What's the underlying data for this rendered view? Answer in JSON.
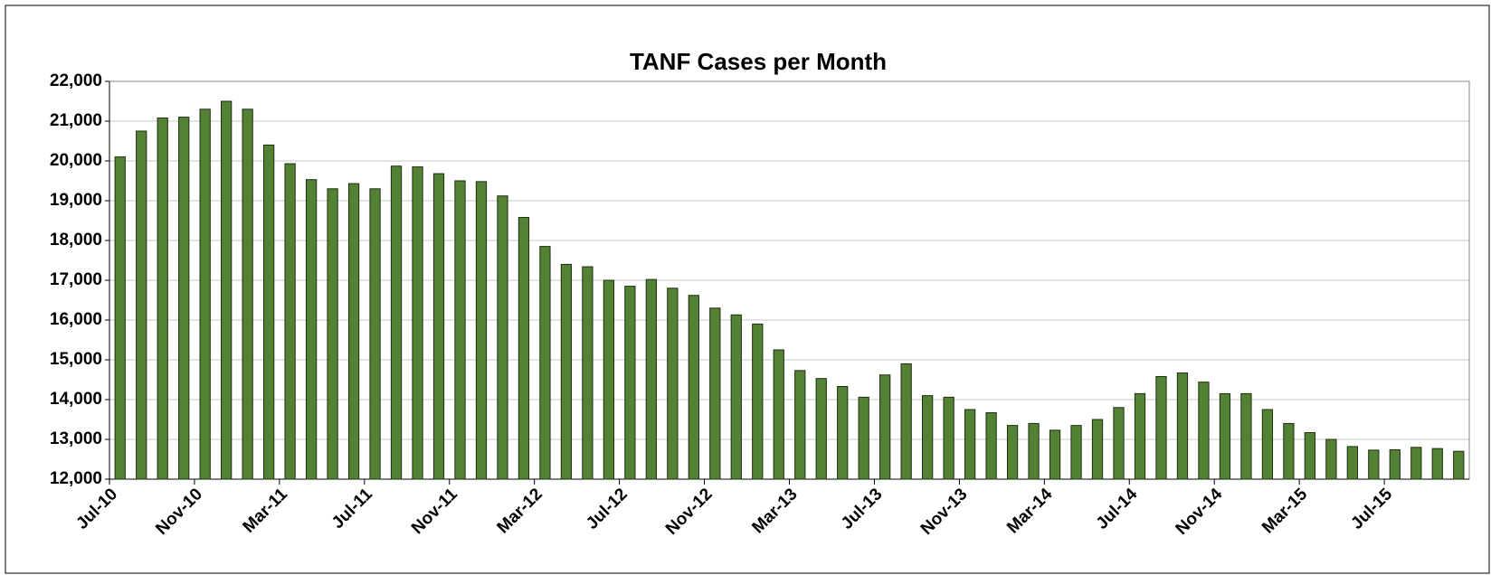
{
  "chart_data": {
    "type": "bar",
    "title": "TANF Cases per Month",
    "categories": [
      "Jul-10",
      null,
      null,
      null,
      "Nov-10",
      null,
      null,
      null,
      "Mar-11",
      null,
      null,
      null,
      "Jul-11",
      null,
      null,
      null,
      "Nov-11",
      null,
      null,
      null,
      "Mar-12",
      null,
      null,
      null,
      "Jul-12",
      null,
      null,
      null,
      "Nov-12",
      null,
      null,
      null,
      "Mar-13",
      null,
      null,
      null,
      "Jul-13",
      null,
      null,
      null,
      "Nov-13",
      null,
      null,
      null,
      "Mar-14",
      null,
      null,
      null,
      "Jul-14",
      null,
      null,
      null,
      "Nov-14",
      null,
      null,
      null,
      "Mar-15",
      null,
      null,
      null,
      "Jul-15",
      null,
      null,
      null
    ],
    "values": [
      20100,
      20750,
      21080,
      21100,
      21300,
      21500,
      21300,
      20400,
      19930,
      19530,
      19300,
      19430,
      19300,
      19870,
      19850,
      19680,
      19500,
      19480,
      19120,
      18580,
      17850,
      17400,
      17340,
      17000,
      16850,
      17020,
      16800,
      16620,
      16300,
      16130,
      15900,
      15250,
      14730,
      14530,
      14330,
      14060,
      14620,
      14900,
      14100,
      14060,
      13750,
      13670,
      13350,
      13400,
      13230,
      13350,
      13500,
      13800,
      14150,
      14580,
      14670,
      14440,
      14150,
      14150,
      13750,
      13400,
      13170,
      13000,
      12820,
      12730,
      12740,
      12800,
      12770,
      12700
    ],
    "color": "#548235",
    "ylim": [
      12000,
      22000
    ],
    "yticks": [
      {
        "value": 12000,
        "label": "12,000"
      },
      {
        "value": 13000,
        "label": "13,000"
      },
      {
        "value": 14000,
        "label": "14,000"
      },
      {
        "value": 15000,
        "label": "15,000"
      },
      {
        "value": 16000,
        "label": "16,000"
      },
      {
        "value": 17000,
        "label": "17,000"
      },
      {
        "value": 18000,
        "label": "18,000"
      },
      {
        "value": 19000,
        "label": "19,000"
      },
      {
        "value": 20000,
        "label": "20,000"
      },
      {
        "value": 21000,
        "label": "21,000"
      },
      {
        "value": 22000,
        "label": "22,000"
      }
    ],
    "grid": true
  }
}
